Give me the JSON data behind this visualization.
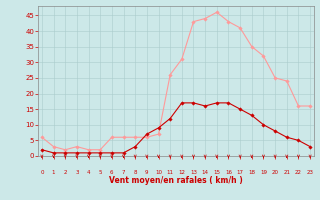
{
  "hours": [
    0,
    1,
    2,
    3,
    4,
    5,
    6,
    7,
    8,
    9,
    10,
    11,
    12,
    13,
    14,
    15,
    16,
    17,
    18,
    19,
    20,
    21,
    22,
    23
  ],
  "wind_avg": [
    2,
    1,
    1,
    1,
    1,
    1,
    1,
    1,
    3,
    7,
    9,
    12,
    17,
    17,
    16,
    17,
    17,
    15,
    13,
    10,
    8,
    6,
    5,
    3
  ],
  "wind_gust": [
    6,
    3,
    2,
    3,
    2,
    2,
    6,
    6,
    6,
    6,
    7,
    26,
    31,
    43,
    44,
    46,
    43,
    41,
    35,
    32,
    25,
    24,
    16,
    16
  ],
  "bg_color": "#cce8e8",
  "grid_color": "#aacccc",
  "avg_line_color": "#cc0000",
  "gust_line_color": "#ff9999",
  "xlabel": "Vent moyen/en rafales ( km/h )",
  "xlabel_color": "#cc0000",
  "tick_color": "#cc0000",
  "axis_color": "#888888",
  "yticks": [
    0,
    5,
    10,
    15,
    20,
    25,
    30,
    35,
    40,
    45
  ],
  "ylim": [
    0,
    48
  ],
  "xlim": [
    -0.3,
    23.3
  ]
}
